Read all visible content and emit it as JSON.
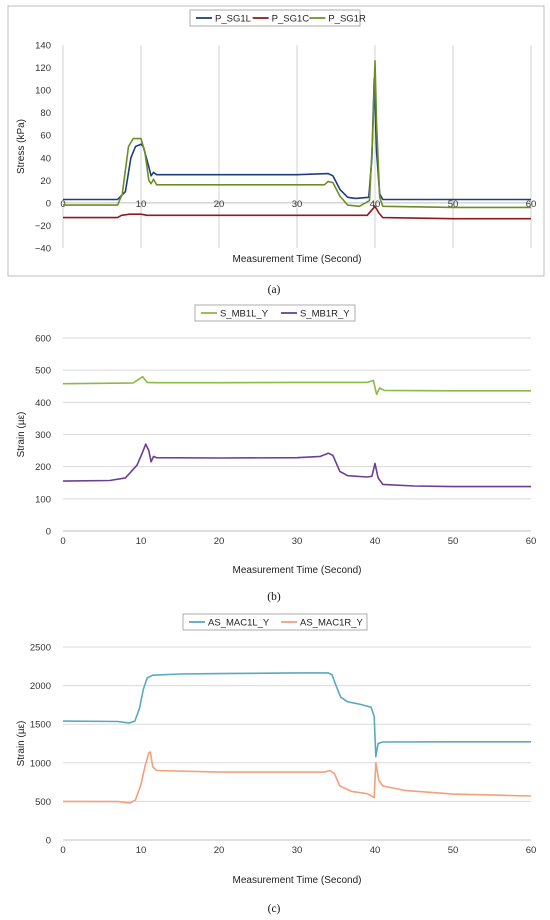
{
  "chart_data": [
    {
      "type": "line",
      "caption": "(a)",
      "xlabel": "Measurement Time (Second)",
      "ylabel": "Stress (kPa)",
      "xlim": [
        0,
        60
      ],
      "ylim": [
        -40,
        140
      ],
      "xticks": [
        0,
        10,
        20,
        30,
        40,
        50,
        60
      ],
      "yticks": [
        -40,
        -20,
        0,
        20,
        40,
        60,
        80,
        100,
        120,
        140
      ],
      "grid": "vertical",
      "legend": "top-center",
      "series": [
        {
          "name": "P_SG1L",
          "color": "#1f3f7a",
          "points": [
            [
              0,
              3
            ],
            [
              7,
              3
            ],
            [
              8,
              10
            ],
            [
              8.7,
              40
            ],
            [
              9.3,
              50
            ],
            [
              10,
              52
            ],
            [
              10.3,
              50
            ],
            [
              11,
              32
            ],
            [
              11.3,
              24
            ],
            [
              11.6,
              27
            ],
            [
              12,
              25
            ],
            [
              20,
              25
            ],
            [
              30,
              25
            ],
            [
              34,
              26
            ],
            [
              34.6,
              24
            ],
            [
              35.5,
              12
            ],
            [
              36.5,
              5
            ],
            [
              37.5,
              4
            ],
            [
              39.2,
              5
            ],
            [
              39.6,
              40
            ],
            [
              39.9,
              110
            ],
            [
              40.2,
              45
            ],
            [
              40.6,
              8
            ],
            [
              41,
              3
            ],
            [
              50,
              3
            ],
            [
              60,
              3
            ]
          ]
        },
        {
          "name": "P_SG1C",
          "color": "#8b1c1c",
          "points": [
            [
              0,
              -13
            ],
            [
              7,
              -13
            ],
            [
              7.5,
              -11
            ],
            [
              8.5,
              -10
            ],
            [
              10,
              -10
            ],
            [
              10.8,
              -11
            ],
            [
              12,
              -11
            ],
            [
              20,
              -11
            ],
            [
              30,
              -11
            ],
            [
              35,
              -11
            ],
            [
              39,
              -11
            ],
            [
              39.5,
              -7
            ],
            [
              40,
              -3
            ],
            [
              40.5,
              -9
            ],
            [
              41,
              -13
            ],
            [
              50,
              -14
            ],
            [
              60,
              -14
            ]
          ]
        },
        {
          "name": "P_SG1R",
          "color": "#6b8f26",
          "points": [
            [
              0,
              -2
            ],
            [
              7,
              -2
            ],
            [
              7.6,
              8
            ],
            [
              8.4,
              50
            ],
            [
              9,
              57
            ],
            [
              10,
              57
            ],
            [
              10.5,
              45
            ],
            [
              11,
              20
            ],
            [
              11.3,
              17
            ],
            [
              11.6,
              21
            ],
            [
              12,
              16
            ],
            [
              20,
              16
            ],
            [
              30,
              16
            ],
            [
              33.5,
              16
            ],
            [
              34,
              19
            ],
            [
              34.6,
              18
            ],
            [
              35.5,
              6
            ],
            [
              36.5,
              -2
            ],
            [
              38,
              -3
            ],
            [
              39.3,
              2
            ],
            [
              39.7,
              60
            ],
            [
              40,
              126
            ],
            [
              40.2,
              70
            ],
            [
              40.6,
              5
            ],
            [
              41,
              -3
            ],
            [
              50,
              -4
            ],
            [
              60,
              -4
            ]
          ]
        }
      ]
    },
    {
      "type": "line",
      "caption": "(b)",
      "xlabel": "Measurement Time (Second)",
      "ylabel": "Strain (µε)",
      "xlim": [
        0,
        60
      ],
      "ylim": [
        0,
        600
      ],
      "xticks": [
        0,
        10,
        20,
        30,
        40,
        50,
        60
      ],
      "yticks": [
        0,
        100,
        200,
        300,
        400,
        500,
        600
      ],
      "grid": "horizontal",
      "legend": "top-center",
      "series": [
        {
          "name": "S_MB1L_Y",
          "color": "#8db84a",
          "points": [
            [
              0,
              458
            ],
            [
              9,
              460
            ],
            [
              9.6,
              470
            ],
            [
              10.2,
              480
            ],
            [
              10.8,
              462
            ],
            [
              12,
              461
            ],
            [
              20,
              461
            ],
            [
              30,
              462
            ],
            [
              39,
              462
            ],
            [
              39.8,
              468
            ],
            [
              40.2,
              425
            ],
            [
              40.6,
              445
            ],
            [
              41.2,
              437
            ],
            [
              50,
              436
            ],
            [
              60,
              436
            ]
          ]
        },
        {
          "name": "S_MB1R_Y",
          "color": "#6a3f95",
          "points": [
            [
              0,
              155
            ],
            [
              6,
              157
            ],
            [
              8,
              165
            ],
            [
              9.5,
              205
            ],
            [
              10.2,
              245
            ],
            [
              10.6,
              270
            ],
            [
              11,
              250
            ],
            [
              11.3,
              215
            ],
            [
              11.6,
              232
            ],
            [
              12,
              228
            ],
            [
              20,
              227
            ],
            [
              30,
              228
            ],
            [
              33,
              232
            ],
            [
              34,
              242
            ],
            [
              34.6,
              235
            ],
            [
              35.5,
              185
            ],
            [
              36.5,
              172
            ],
            [
              39,
              168
            ],
            [
              39.6,
              170
            ],
            [
              40,
              210
            ],
            [
              40.4,
              165
            ],
            [
              41,
              145
            ],
            [
              45,
              140
            ],
            [
              50,
              138
            ],
            [
              60,
              138
            ]
          ]
        }
      ]
    },
    {
      "type": "line",
      "caption": "(c)",
      "xlabel": "Measurement Time (Second)",
      "ylabel": "Strain (µε)",
      "xlim": [
        0,
        60
      ],
      "ylim": [
        0,
        2500
      ],
      "xticks": [
        0,
        10,
        20,
        30,
        40,
        50,
        60
      ],
      "yticks": [
        0,
        500,
        1000,
        1500,
        2000,
        2500
      ],
      "grid": "horizontal",
      "legend": "top-center",
      "series": [
        {
          "name": "AS_MAC1L_Y",
          "color": "#5aa8c2",
          "points": [
            [
              0,
              1540
            ],
            [
              7,
              1535
            ],
            [
              8.5,
              1515
            ],
            [
              9.2,
              1540
            ],
            [
              9.8,
              1700
            ],
            [
              10.3,
              1950
            ],
            [
              10.8,
              2100
            ],
            [
              11.5,
              2135
            ],
            [
              15,
              2150
            ],
            [
              20,
              2155
            ],
            [
              30,
              2165
            ],
            [
              34,
              2165
            ],
            [
              34.5,
              2140
            ],
            [
              35,
              2000
            ],
            [
              35.6,
              1850
            ],
            [
              36.5,
              1790
            ],
            [
              38,
              1760
            ],
            [
              39.5,
              1720
            ],
            [
              39.9,
              1600
            ],
            [
              40.1,
              1080
            ],
            [
              40.4,
              1250
            ],
            [
              41,
              1270
            ],
            [
              50,
              1272
            ],
            [
              60,
              1272
            ]
          ]
        },
        {
          "name": "AS_MAC1R_Y",
          "color": "#f4a07a",
          "points": [
            [
              0,
              500
            ],
            [
              7,
              497
            ],
            [
              8.6,
              480
            ],
            [
              9.3,
              520
            ],
            [
              10,
              720
            ],
            [
              10.5,
              950
            ],
            [
              11,
              1130
            ],
            [
              11.2,
              1140
            ],
            [
              11.5,
              950
            ],
            [
              12,
              900
            ],
            [
              20,
              880
            ],
            [
              30,
              880
            ],
            [
              33.5,
              880
            ],
            [
              34.2,
              900
            ],
            [
              34.8,
              860
            ],
            [
              35.5,
              700
            ],
            [
              37,
              630
            ],
            [
              39,
              600
            ],
            [
              39.9,
              550
            ],
            [
              40.1,
              1000
            ],
            [
              40.5,
              770
            ],
            [
              41,
              700
            ],
            [
              44,
              640
            ],
            [
              50,
              595
            ],
            [
              60,
              570
            ]
          ]
        }
      ]
    }
  ]
}
